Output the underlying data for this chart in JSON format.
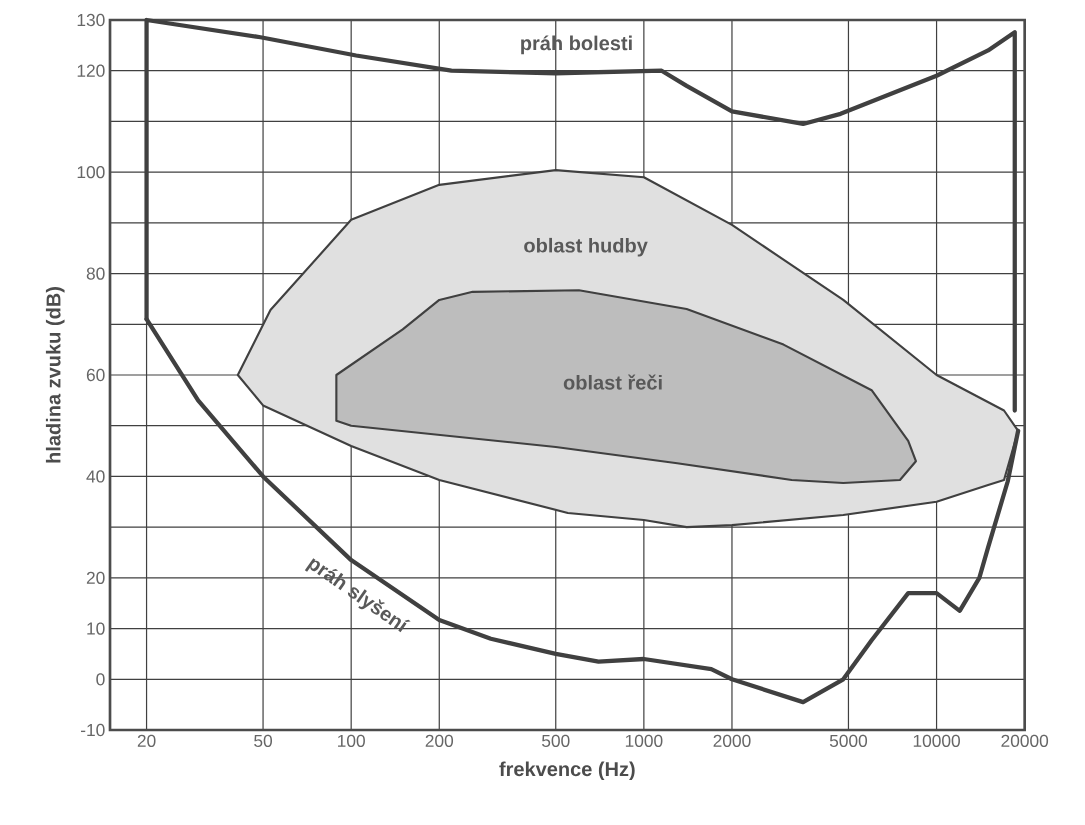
{
  "chart_data": {
    "type": "line",
    "xlabel": "frekvence (Hz)",
    "ylabel": "hladina zvuku (dB)",
    "log": "x",
    "grid": true,
    "xlim": [
      15,
      20000
    ],
    "ylim": [
      -10,
      130
    ],
    "xticks": [
      20,
      50,
      100,
      200,
      500,
      1000,
      2000,
      5000,
      10000,
      20000
    ],
    "yticks": [
      -10,
      0,
      10,
      20,
      {
        "value": 30,
        "label": null
      },
      40,
      {
        "value": 50,
        "label": null
      },
      60,
      {
        "value": 70,
        "label": null
      },
      80,
      {
        "value": 90,
        "label": null
      },
      100,
      {
        "value": 110,
        "label": null
      },
      120,
      130
    ],
    "series": [
      {
        "name": "oblast hudby",
        "type": "area",
        "color": "#e0e0e0",
        "x": [
          41,
          53,
          100,
          200,
          500,
          1000,
          2000,
          4800,
          10000,
          17000,
          19000,
          17000,
          15000,
          10000,
          4800,
          2000,
          1400,
          1000,
          550,
          200,
          100,
          50
        ],
        "values": [
          60,
          72.8,
          90.6,
          97.5,
          100.4,
          99,
          89.6,
          74.8,
          60,
          53,
          49,
          39.3,
          38.3,
          35,
          32.4,
          30.4,
          30,
          31.4,
          32.8,
          39.3,
          46,
          54
        ]
      },
      {
        "name": "oblast řeči",
        "type": "area",
        "color": "#bdbdbd",
        "x": [
          89,
          150,
          200,
          260,
          600,
          1400,
          3000,
          6000,
          8000,
          8500,
          7500,
          4800,
          3200,
          1300,
          500,
          100,
          89
        ],
        "values": [
          60,
          69,
          74.8,
          76.4,
          76.7,
          73,
          66,
          57,
          47,
          43,
          39.3,
          38.7,
          39.3,
          42.6,
          45.8,
          50,
          51
        ]
      },
      {
        "name": "práh bolesti",
        "color": "#404040",
        "x": [
          20,
          20,
          49,
          104,
          220,
          500,
          1150,
          1400,
          2000,
          3500,
          4700,
          10000,
          15000,
          18500,
          18500
        ],
        "values": [
          71,
          130,
          126.6,
          123,
          120,
          119.5,
          120,
          117,
          112,
          109.5,
          111.5,
          119,
          124,
          127.6,
          53
        ]
      },
      {
        "name": "práh slyšení",
        "color": "#404040",
        "x": [
          20,
          30,
          50,
          100,
          200,
          300,
          500,
          700,
          1000,
          1700,
          2000,
          3500,
          4800,
          6000,
          8000,
          10000,
          12000,
          14000,
          15000,
          17500,
          19000
        ],
        "values": [
          71,
          55,
          40,
          23.5,
          11.7,
          8,
          5,
          3.5,
          4,
          2,
          0,
          -4.5,
          0,
          7.7,
          17,
          17,
          13.5,
          20,
          26,
          39,
          49
        ]
      }
    ]
  }
}
